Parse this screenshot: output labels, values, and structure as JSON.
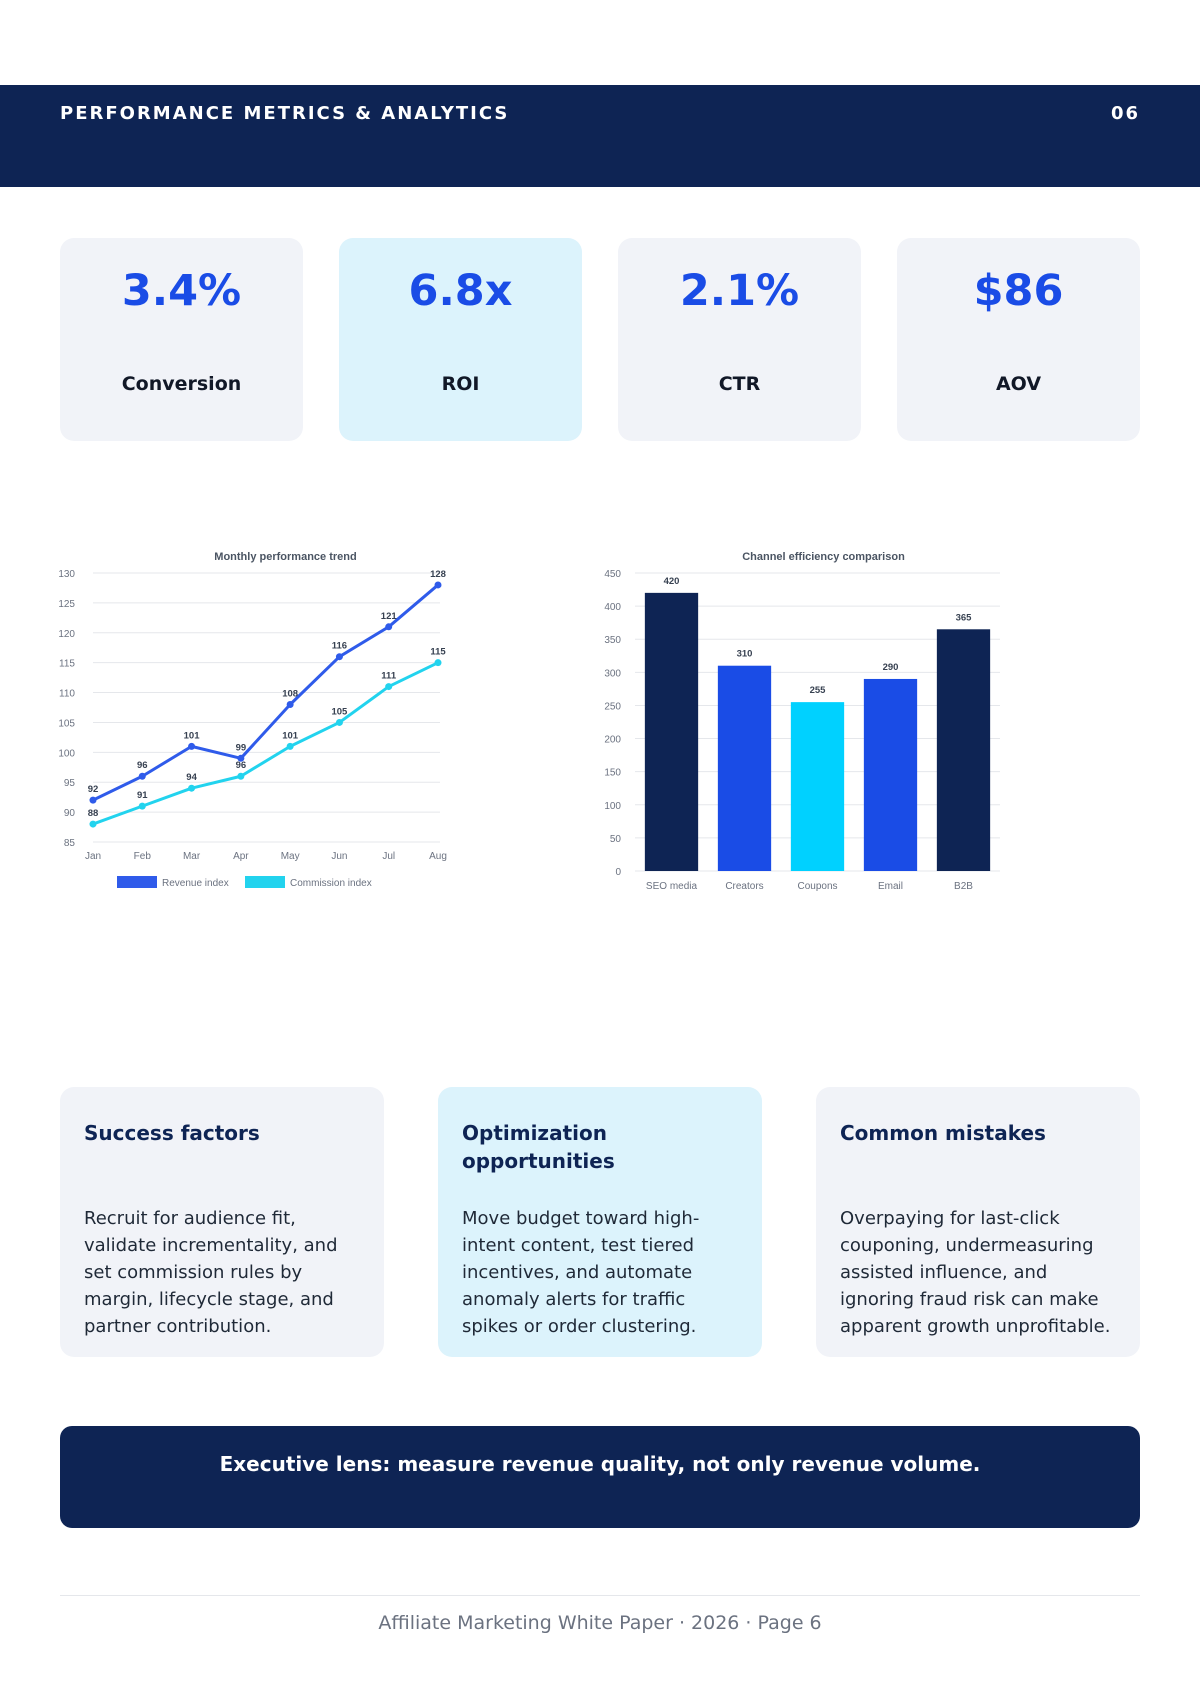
{
  "header": {
    "title": "PERFORMANCE METRICS & ANALYTICS",
    "page_number": "06"
  },
  "kpis": [
    {
      "value": "3.4%",
      "label": "Conversion"
    },
    {
      "value": "6.8x",
      "label": "ROI"
    },
    {
      "value": "2.1%",
      "label": "CTR"
    },
    {
      "value": "$86",
      "label": "AOV"
    }
  ],
  "colors": {
    "navy": "#0e2454",
    "blue": "#1a4ce6",
    "cyan": "#00d1ff",
    "highlight_bg": "#dcf3fc",
    "card_bg": "#f1f3f8"
  },
  "chart_data": [
    {
      "type": "line",
      "title": "Monthly performance trend",
      "categories": [
        "Jan",
        "Feb",
        "Mar",
        "Apr",
        "May",
        "Jun",
        "Jul",
        "Aug"
      ],
      "series": [
        {
          "name": "Revenue index",
          "color": "#2f5bea",
          "values": [
            92,
            96,
            101,
            99,
            108,
            116,
            121,
            128
          ]
        },
        {
          "name": "Commission index",
          "color": "#22d3ee",
          "values": [
            88,
            91,
            94,
            96,
            101,
            105,
            111,
            115
          ]
        }
      ],
      "ylim": [
        85,
        130
      ],
      "yticks": [
        85,
        90,
        95,
        100,
        105,
        110,
        115,
        120,
        125,
        130
      ],
      "grid": true,
      "legend": "bottom"
    },
    {
      "type": "bar",
      "title": "Channel efficiency comparison",
      "categories": [
        "SEO media",
        "Creators",
        "Coupons",
        "Email",
        "B2B"
      ],
      "values": [
        420,
        310,
        255,
        290,
        365
      ],
      "bar_colors": [
        "#0e2454",
        "#1a4ce6",
        "#00d1ff",
        "#1a4ce6",
        "#0e2454"
      ],
      "ylim": [
        0,
        450
      ],
      "yticks": [
        0,
        50,
        100,
        150,
        200,
        250,
        300,
        350,
        400,
        450
      ],
      "grid": true
    }
  ],
  "cards": [
    {
      "title": "Success factors",
      "body": "Recruit for audience fit, validate incrementality, and set commission rules by margin, lifecycle stage, and partner contribution."
    },
    {
      "title": "Optimization opportunities",
      "body": "Move budget toward high-intent content, test tiered incentives, and automate anomaly alerts for traffic spikes or order clustering."
    },
    {
      "title": "Common mistakes",
      "body": "Overpaying for last-click couponing, undermeasuring assisted influence, and ignoring fraud risk can make apparent growth unprofitable."
    }
  ],
  "banner": {
    "text": "Executive lens: measure revenue quality, not only revenue volume."
  },
  "footer": {
    "text": "Affiliate Marketing White Paper · 2026 · Page 6"
  }
}
